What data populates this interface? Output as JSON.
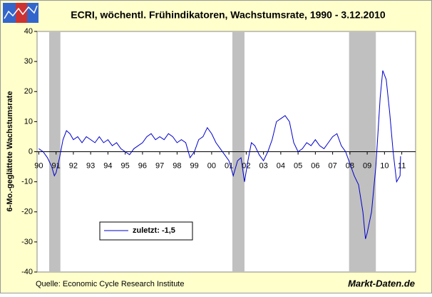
{
  "chart_data": {
    "type": "line",
    "title": "ECRI, wöchentl. Frühindikatoren, Wachstumsrate, 1990 - 3.12.2010",
    "y_label": "6-Mo.-geglättete Wachstumsrate",
    "source": "Quelle: Economic Cycle Research Institute",
    "brand": "Markt-Daten.de",
    "x": [
      1990.0,
      1990.25,
      1990.5,
      1990.75,
      1990.9,
      1991.0,
      1991.2,
      1991.4,
      1991.6,
      1991.8,
      1992.0,
      1992.25,
      1992.5,
      1992.75,
      1993.0,
      1993.25,
      1993.5,
      1993.75,
      1994.0,
      1994.25,
      1994.5,
      1994.75,
      1995.0,
      1995.25,
      1995.5,
      1995.75,
      1996.0,
      1996.25,
      1996.5,
      1996.75,
      1997.0,
      1997.25,
      1997.5,
      1997.75,
      1998.0,
      1998.25,
      1998.5,
      1998.75,
      1999.0,
      1999.25,
      1999.5,
      1999.75,
      2000.0,
      2000.25,
      2000.5,
      2000.75,
      2001.0,
      2001.25,
      2001.5,
      2001.7,
      2001.9,
      2002.1,
      2002.3,
      2002.5,
      2002.75,
      2003.0,
      2003.25,
      2003.5,
      2003.75,
      2004.0,
      2004.25,
      2004.5,
      2004.75,
      2005.0,
      2005.25,
      2005.5,
      2005.75,
      2006.0,
      2006.25,
      2006.5,
      2006.75,
      2007.0,
      2007.25,
      2007.5,
      2007.75,
      2008.0,
      2008.25,
      2008.5,
      2008.75,
      2008.9,
      2009.0,
      2009.25,
      2009.5,
      2009.75,
      2009.9,
      2010.1,
      2010.3,
      2010.5,
      2010.7,
      2010.9,
      2010.93
    ],
    "series": [
      {
        "name": "zuletzt: -1,5",
        "color": "#0000cc",
        "values": [
          1,
          0,
          -2,
          -5,
          -8,
          -7,
          -2,
          4,
          7,
          6,
          4,
          5,
          3,
          5,
          4,
          3,
          5,
          3,
          4,
          2,
          3,
          1,
          0,
          -1,
          1,
          2,
          3,
          5,
          6,
          4,
          5,
          4,
          6,
          5,
          3,
          4,
          3,
          -2,
          0,
          4,
          5,
          8,
          6,
          3,
          1,
          -1,
          -3,
          -8,
          -3,
          -2,
          -10,
          -3,
          3,
          2,
          -1,
          -3,
          0,
          4,
          10,
          11,
          12,
          10,
          3,
          0,
          1,
          3,
          2,
          4,
          2,
          1,
          3,
          5,
          6,
          2,
          0,
          -4,
          -8,
          -11,
          -20,
          -29,
          -27,
          -20,
          -5,
          18,
          27,
          24,
          13,
          0,
          -10,
          -8,
          -1.5
        ]
      }
    ],
    "shaded_periods": [
      [
        1990.6,
        1991.25
      ],
      [
        2001.2,
        2001.9
      ],
      [
        2007.95,
        2009.5
      ]
    ],
    "shade_color": "#c0c0c0",
    "xlim": [
      1989.9,
      2011.8
    ],
    "xticks": [
      {
        "value": 1990,
        "label": "90"
      },
      {
        "value": 1991,
        "label": "91"
      },
      {
        "value": 1992,
        "label": "92"
      },
      {
        "value": 1993,
        "label": "93"
      },
      {
        "value": 1994,
        "label": "94"
      },
      {
        "value": 1995,
        "label": "95"
      },
      {
        "value": 1996,
        "label": "96"
      },
      {
        "value": 1997,
        "label": "97"
      },
      {
        "value": 1998,
        "label": "98"
      },
      {
        "value": 1999,
        "label": "99"
      },
      {
        "value": 2000,
        "label": "00"
      },
      {
        "value": 2001,
        "label": "01"
      },
      {
        "value": 2002,
        "label": "02"
      },
      {
        "value": 2003,
        "label": "03"
      },
      {
        "value": 2004,
        "label": "04"
      },
      {
        "value": 2005,
        "label": "05"
      },
      {
        "value": 2006,
        "label": "06"
      },
      {
        "value": 2007,
        "label": "07"
      },
      {
        "value": 2008,
        "label": "08"
      },
      {
        "value": 2009,
        "label": "09"
      },
      {
        "value": 2010,
        "label": "10"
      },
      {
        "value": 2011,
        "label": "11"
      }
    ],
    "ylim": [
      -40,
      40
    ],
    "yticks": [
      -40,
      -30,
      -20,
      -10,
      0,
      10,
      20,
      30,
      40
    ]
  }
}
